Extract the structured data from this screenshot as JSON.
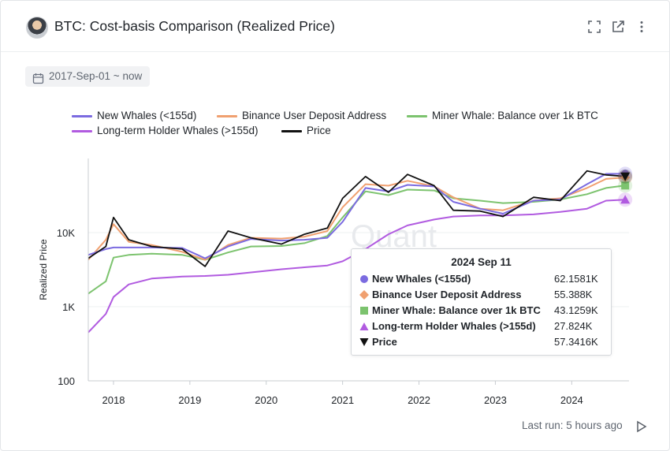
{
  "header": {
    "title": "BTC: Cost-basis Comparison (Realized Price)",
    "icons": [
      "avatar",
      "fullscreen-icon",
      "open-external-icon",
      "more-vertical-icon"
    ]
  },
  "filter": {
    "date_range": "2017-Sep-01 ~ now",
    "icon": "calendar-icon"
  },
  "watermark": "Quant",
  "colors": {
    "new_whales": "#7b6be0",
    "binance": "#f0a070",
    "miner": "#7cc36e",
    "lth": "#b15be0",
    "price": "#111111"
  },
  "legend": [
    {
      "name": "New Whales (<155d)",
      "color": "#7b6be0"
    },
    {
      "name": "Binance User Deposit Address",
      "color": "#f0a070"
    },
    {
      "name": "Miner Whale: Balance over 1k BTC",
      "color": "#7cc36e"
    },
    {
      "name": "Long-term Holder Whales (>155d)",
      "color": "#b15be0"
    },
    {
      "name": "Price",
      "color": "#111111"
    }
  ],
  "chart_data": {
    "type": "line",
    "title": "BTC: Cost-basis Comparison (Realized Price)",
    "ylabel": "Realized Price",
    "xlabel": "",
    "yscale": "log",
    "ylim": [
      100,
      100000
    ],
    "y_ticks": [
      "100",
      "1K",
      "10K"
    ],
    "x_ticks": [
      "2018",
      "2019",
      "2020",
      "2021",
      "2022",
      "2023",
      "2024"
    ],
    "x": [
      2017.67,
      2017.9,
      2018.0,
      2018.2,
      2018.5,
      2018.9,
      2019.2,
      2019.5,
      2019.8,
      2020.2,
      2020.5,
      2020.8,
      2021.0,
      2021.3,
      2021.6,
      2021.85,
      2022.2,
      2022.45,
      2022.8,
      2023.1,
      2023.5,
      2023.85,
      2024.2,
      2024.45,
      2024.7
    ],
    "series": [
      {
        "name": "New Whales (<155d)",
        "color": "#7b6be0",
        "values": [
          5000,
          6000,
          6300,
          6300,
          6300,
          6200,
          4500,
          6500,
          8200,
          7800,
          8000,
          8500,
          14000,
          40000,
          36000,
          44000,
          42000,
          26000,
          21000,
          18000,
          27000,
          28000,
          45000,
          62000,
          62158
        ]
      },
      {
        "name": "Binance User Deposit Address",
        "color": "#f0a070",
        "values": [
          4300,
          8000,
          13000,
          7500,
          6800,
          5500,
          4300,
          6800,
          8500,
          8300,
          8800,
          10500,
          22000,
          45000,
          43000,
          50000,
          42000,
          30000,
          21000,
          20000,
          27000,
          29000,
          40000,
          53000,
          55388
        ]
      },
      {
        "name": "Miner Whale: Balance over 1k BTC",
        "color": "#7cc36e",
        "values": [
          1500,
          2200,
          4600,
          5000,
          5200,
          5000,
          4300,
          5400,
          6500,
          6600,
          7200,
          9000,
          16000,
          36000,
          32000,
          38000,
          37000,
          29000,
          27000,
          25000,
          26000,
          28000,
          33000,
          40000,
          43126
        ]
      },
      {
        "name": "Long-term Holder Whales (>155d)",
        "color": "#b15be0",
        "values": [
          450,
          800,
          1350,
          2000,
          2400,
          2550,
          2600,
          2700,
          2900,
          3200,
          3400,
          3600,
          4100,
          6000,
          9500,
          12500,
          15000,
          16500,
          17000,
          17000,
          17600,
          19000,
          21000,
          27000,
          27824
        ]
      },
      {
        "name": "Price",
        "color": "#111111",
        "values": [
          4500,
          6500,
          16000,
          8000,
          6500,
          6000,
          3500,
          10500,
          8500,
          7000,
          9500,
          11500,
          29000,
          57000,
          35000,
          61000,
          43000,
          20000,
          19500,
          16500,
          30000,
          27000,
          68000,
          60000,
          57342
        ]
      }
    ]
  },
  "tooltip": {
    "date": "2024 Sep 11",
    "rows": [
      {
        "name": "New Whales (<155d)",
        "value": "62.1581K",
        "marker": "circle",
        "color": "#7b6be0"
      },
      {
        "name": "Binance User Deposit Address",
        "value": "55.388K",
        "marker": "diamond",
        "color": "#f0a070"
      },
      {
        "name": "Miner Whale: Balance over 1k BTC",
        "value": "43.1259K",
        "marker": "square",
        "color": "#7cc36e"
      },
      {
        "name": "Long-term Holder Whales (>155d)",
        "value": "27.824K",
        "marker": "triangle-up",
        "color": "#b15be0"
      },
      {
        "name": "Price",
        "value": "57.3416K",
        "marker": "triangle-down",
        "color": "#111111"
      }
    ]
  },
  "footer": {
    "last_run": "Last run: 5 hours ago",
    "icon": "play-icon"
  }
}
